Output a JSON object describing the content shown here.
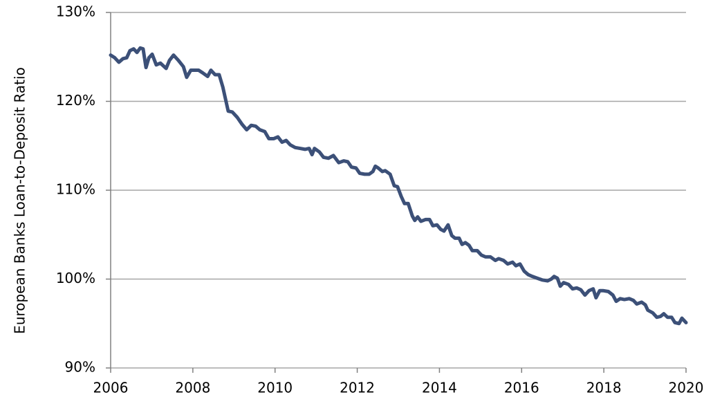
{
  "chart_data": {
    "type": "line",
    "y_label": "European Banks Loan-to-Deposit Ratio",
    "color": "#3c5078",
    "grid": true,
    "xlim": [
      2006,
      2020
    ],
    "xticks": [
      2006,
      2008,
      2010,
      2012,
      2014,
      2016,
      2018,
      2020
    ],
    "ylim": [
      90,
      130
    ],
    "yticks": [
      {
        "value": 90,
        "label": "90%"
      },
      {
        "value": 100,
        "label": "100%"
      },
      {
        "value": 110,
        "label": "110%"
      },
      {
        "value": 120,
        "label": "120%"
      },
      {
        "value": 130,
        "label": "130%"
      }
    ],
    "x": [
      2006.0,
      2006.1,
      2006.2,
      2006.3,
      2006.39,
      2006.47,
      2006.56,
      2006.64,
      2006.72,
      2006.79,
      2006.86,
      2006.93,
      2007.01,
      2007.11,
      2007.21,
      2007.35,
      2007.43,
      2007.53,
      2007.65,
      2007.77,
      2007.85,
      2007.95,
      2008.14,
      2008.24,
      2008.36,
      2008.44,
      2008.54,
      2008.64,
      2008.73,
      2008.86,
      2008.96,
      2009.08,
      2009.2,
      2009.31,
      2009.42,
      2009.53,
      2009.63,
      2009.75,
      2009.85,
      2009.97,
      2010.07,
      2010.17,
      2010.27,
      2010.37,
      2010.49,
      2010.61,
      2010.73,
      2010.83,
      2010.9,
      2010.96,
      2011.08,
      2011.18,
      2011.3,
      2011.42,
      2011.55,
      2011.67,
      2011.77,
      2011.86,
      2011.97,
      2012.06,
      2012.18,
      2012.29,
      2012.38,
      2012.44,
      2012.51,
      2012.61,
      2012.68,
      2012.8,
      2012.9,
      2012.98,
      2013.07,
      2013.15,
      2013.24,
      2013.34,
      2013.4,
      2013.47,
      2013.55,
      2013.66,
      2013.76,
      2013.84,
      2013.94,
      2014.03,
      2014.11,
      2014.21,
      2014.3,
      2014.38,
      2014.48,
      2014.55,
      2014.63,
      2014.72,
      2014.8,
      2014.92,
      2015.02,
      2015.12,
      2015.24,
      2015.36,
      2015.44,
      2015.56,
      2015.66,
      2015.78,
      2015.86,
      2015.96,
      2016.06,
      2016.16,
      2016.26,
      2016.38,
      2016.5,
      2016.63,
      2016.72,
      2016.79,
      2016.87,
      2016.94,
      2017.02,
      2017.14,
      2017.24,
      2017.34,
      2017.44,
      2017.54,
      2017.64,
      2017.74,
      2017.81,
      2017.9,
      2017.98,
      2018.11,
      2018.22,
      2018.3,
      2018.4,
      2018.5,
      2018.62,
      2018.72,
      2018.8,
      2018.92,
      2019.01,
      2019.07,
      2019.19,
      2019.29,
      2019.38,
      2019.46,
      2019.55,
      2019.65,
      2019.73,
      2019.83,
      2019.9,
      2020.0
    ],
    "values": [
      125.2,
      124.9,
      124.4,
      124.8,
      124.9,
      125.7,
      125.9,
      125.5,
      126.0,
      125.9,
      123.8,
      124.9,
      125.3,
      124.1,
      124.3,
      123.7,
      124.6,
      125.2,
      124.6,
      123.9,
      122.7,
      123.5,
      123.5,
      123.2,
      122.8,
      123.5,
      123.0,
      123.0,
      121.6,
      118.9,
      118.8,
      118.2,
      117.4,
      116.8,
      117.3,
      117.2,
      116.8,
      116.6,
      115.8,
      115.8,
      116.0,
      115.4,
      115.6,
      115.1,
      114.8,
      114.7,
      114.6,
      114.7,
      114.0,
      114.7,
      114.3,
      113.7,
      113.6,
      113.9,
      113.1,
      113.3,
      113.2,
      112.6,
      112.5,
      111.9,
      111.8,
      111.8,
      112.1,
      112.7,
      112.5,
      112.1,
      112.2,
      111.8,
      110.5,
      110.4,
      109.3,
      108.5,
      108.5,
      107.1,
      106.6,
      107.0,
      106.5,
      106.7,
      106.7,
      106.0,
      106.1,
      105.6,
      105.4,
      106.1,
      104.9,
      104.6,
      104.6,
      103.9,
      104.1,
      103.8,
      103.2,
      103.2,
      102.7,
      102.5,
      102.5,
      102.1,
      102.3,
      102.1,
      101.7,
      101.9,
      101.5,
      101.7,
      100.9,
      100.5,
      100.3,
      100.1,
      99.9,
      99.8,
      100.0,
      100.3,
      100.1,
      99.2,
      99.6,
      99.4,
      98.9,
      99.0,
      98.8,
      98.2,
      98.7,
      98.9,
      97.9,
      98.7,
      98.7,
      98.6,
      98.2,
      97.5,
      97.8,
      97.7,
      97.8,
      97.6,
      97.2,
      97.4,
      97.1,
      96.5,
      96.2,
      95.7,
      95.8,
      96.1,
      95.7,
      95.7,
      95.1,
      95.0,
      95.6,
      95.1
    ]
  }
}
